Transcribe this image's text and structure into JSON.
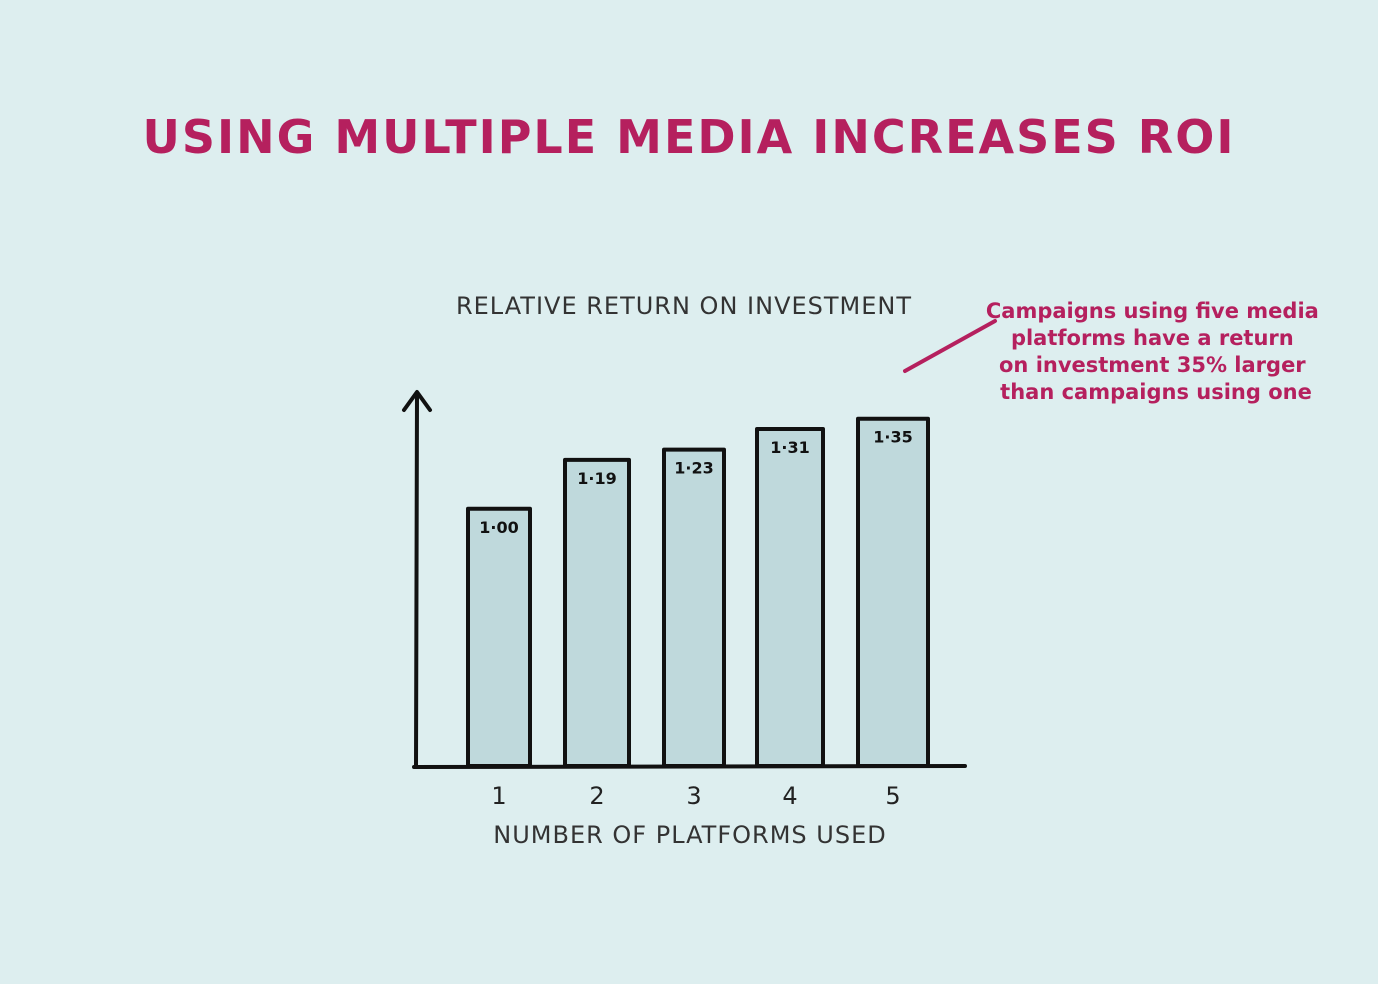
{
  "title": "USING MULTIPLE MEDIA INCREASES ROI",
  "colors": {
    "background": "#ddeeef",
    "accent": "#b5205e",
    "bar_fill": "#bfd9dc",
    "ink": "#111111"
  },
  "annotation": {
    "lines": [
      "Campaigns using five media",
      "platforms have a return",
      "on investment 35% larger",
      "than campaigns using one"
    ]
  },
  "chart_data": {
    "type": "bar",
    "title": "USING MULTIPLE MEDIA INCREASES ROI",
    "ylabel": "RELATIVE RETURN ON INVESTMENT",
    "xlabel": "NUMBER OF PLATFORMS USED",
    "categories": [
      "1",
      "2",
      "3",
      "4",
      "5"
    ],
    "values": [
      1.0,
      1.19,
      1.23,
      1.31,
      1.35
    ],
    "data_labels": [
      "1·00",
      "1·19",
      "1·23",
      "1·31",
      "1·35"
    ],
    "ylim": [
      0,
      1.45
    ],
    "grid": false,
    "legend": "none"
  }
}
